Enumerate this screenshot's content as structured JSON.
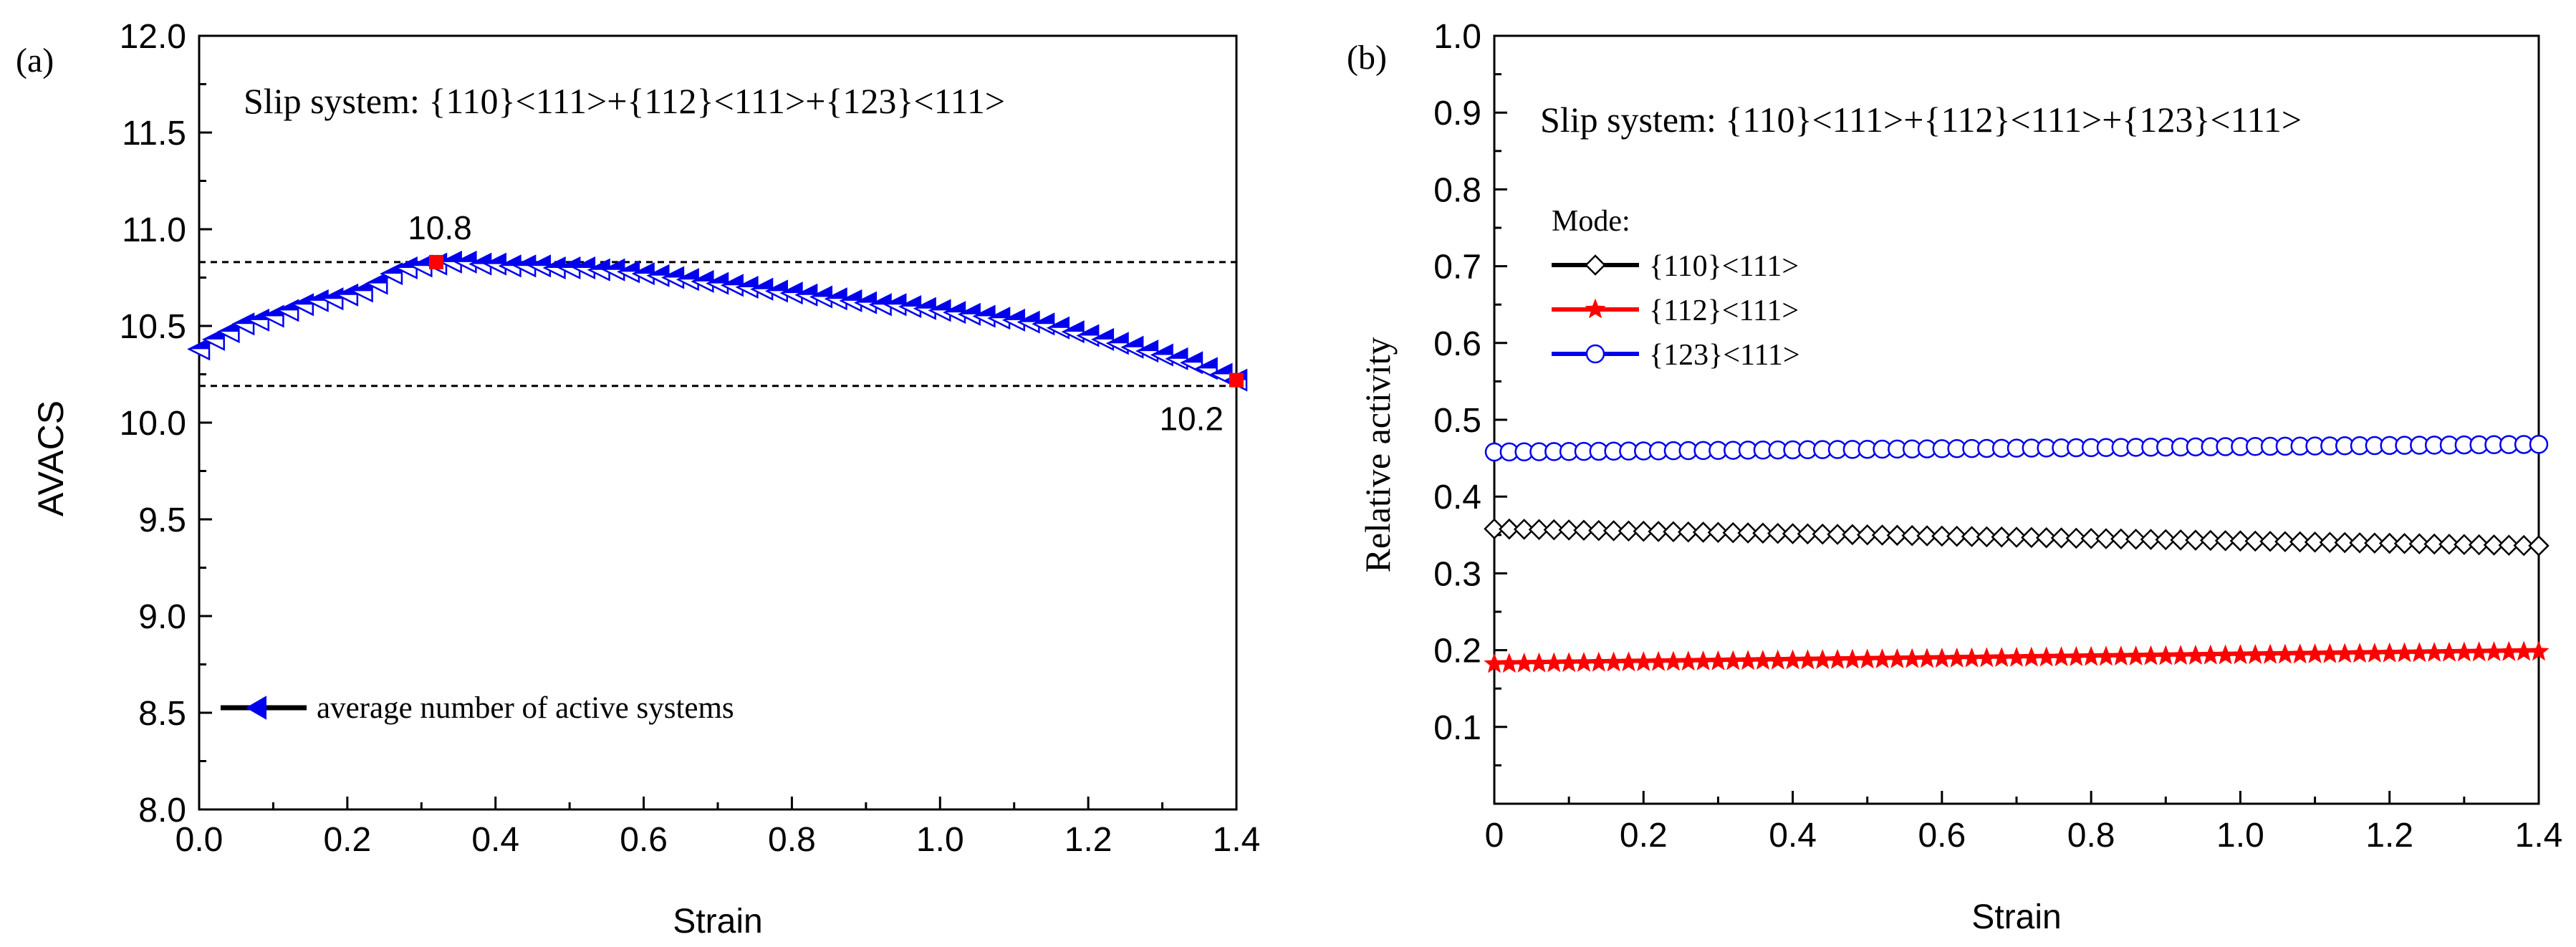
{
  "chart_data": [
    {
      "panel_label": "(a)",
      "type": "line",
      "title": "",
      "annotation": "Slip system: {110}<111>+{112}<111>+{123}<111>",
      "xlabel": "Strain",
      "ylabel": "AVACS",
      "xlim": [
        0.0,
        1.4
      ],
      "ylim": [
        8.0,
        12.0
      ],
      "xticks": [
        0.0,
        0.2,
        0.4,
        0.6,
        0.8,
        1.0,
        1.2,
        1.4
      ],
      "xtick_labels": [
        "0.0",
        "0.2",
        "0.4",
        "0.6",
        "0.8",
        "1.0",
        "1.2",
        "1.4"
      ],
      "yticks": [
        8.0,
        8.5,
        9.0,
        9.5,
        10.0,
        10.5,
        11.0,
        11.5,
        12.0
      ],
      "ytick_labels": [
        "8.0",
        "8.5",
        "9.0",
        "9.5",
        "10.0",
        "10.5",
        "11.0",
        "11.5",
        "12.0"
      ],
      "grid": false,
      "legend_position": "bottom-left",
      "series": [
        {
          "name": "average number of active systems",
          "color": "#0000ee",
          "marker": "left-triangle",
          "x": [
            0.0,
            0.02,
            0.04,
            0.06,
            0.08,
            0.1,
            0.12,
            0.14,
            0.16,
            0.18,
            0.2,
            0.22,
            0.24,
            0.26,
            0.28,
            0.3,
            0.32,
            0.34,
            0.36,
            0.38,
            0.4,
            0.42,
            0.44,
            0.46,
            0.48,
            0.5,
            0.52,
            0.54,
            0.56,
            0.58,
            0.6,
            0.62,
            0.64,
            0.66,
            0.68,
            0.7,
            0.72,
            0.74,
            0.76,
            0.78,
            0.8,
            0.82,
            0.84,
            0.86,
            0.88,
            0.9,
            0.92,
            0.94,
            0.96,
            0.98,
            1.0,
            1.02,
            1.04,
            1.06,
            1.08,
            1.1,
            1.12,
            1.14,
            1.16,
            1.18,
            1.2,
            1.22,
            1.24,
            1.26,
            1.28,
            1.3,
            1.32,
            1.34,
            1.36,
            1.38,
            1.4
          ],
          "y": [
            10.38,
            10.43,
            10.47,
            10.51,
            10.53,
            10.55,
            10.58,
            10.61,
            10.63,
            10.64,
            10.66,
            10.68,
            10.72,
            10.77,
            10.8,
            10.81,
            10.82,
            10.83,
            10.83,
            10.82,
            10.82,
            10.81,
            10.81,
            10.81,
            10.8,
            10.8,
            10.8,
            10.79,
            10.79,
            10.78,
            10.77,
            10.76,
            10.75,
            10.74,
            10.73,
            10.72,
            10.71,
            10.7,
            10.69,
            10.68,
            10.67,
            10.66,
            10.65,
            10.64,
            10.63,
            10.62,
            10.61,
            10.61,
            10.6,
            10.59,
            10.58,
            10.57,
            10.56,
            10.55,
            10.54,
            10.53,
            10.52,
            10.51,
            10.49,
            10.47,
            10.45,
            10.43,
            10.41,
            10.39,
            10.37,
            10.35,
            10.33,
            10.31,
            10.28,
            10.25,
            10.22
          ]
        }
      ],
      "reference_lines": [
        {
          "y": 10.83,
          "style": "dashed"
        },
        {
          "y": 10.19,
          "style": "dashed"
        }
      ],
      "highlight_points": [
        {
          "x": 0.32,
          "y": 10.83,
          "label": "10.8",
          "color": "#ff0000"
        },
        {
          "x": 1.4,
          "y": 10.22,
          "label": "10.2",
          "color": "#ff0000"
        }
      ]
    },
    {
      "panel_label": "(b)",
      "type": "line",
      "title": "",
      "annotation": "Slip system: {110}<111>+{112}<111>+{123}<111>",
      "xlabel": "Strain",
      "ylabel": "Relative activity",
      "xlim": [
        0.0,
        1.4
      ],
      "ylim": [
        0.0,
        1.0
      ],
      "xticks": [
        0.0,
        0.2,
        0.4,
        0.6,
        0.8,
        1.0,
        1.2,
        1.4
      ],
      "xtick_labels": [
        "0",
        "0.2",
        "0.4",
        "0.6",
        "0.8",
        "1.0",
        "1.2",
        "1.4"
      ],
      "yticks": [
        0.1,
        0.2,
        0.3,
        0.4,
        0.5,
        0.6,
        0.7,
        0.8,
        0.9,
        1.0
      ],
      "ytick_labels": [
        "0.1",
        "0.2",
        "0.3",
        "0.4",
        "0.5",
        "0.6",
        "0.7",
        "0.8",
        "0.9",
        "1.0"
      ],
      "grid": false,
      "legend_title": "Mode:",
      "legend_position": "upper-left",
      "series": [
        {
          "name": "{110}<111>",
          "color": "#000000",
          "marker": "diamond",
          "x_start": 0.0,
          "x_end": 1.4,
          "num_points": 71,
          "y_start": 0.358,
          "y_end": 0.336
        },
        {
          "name": "{112}<111>",
          "color": "#ff0000",
          "marker": "star",
          "x_start": 0.0,
          "x_end": 1.4,
          "num_points": 71,
          "y_start": 0.182,
          "y_end": 0.198
        },
        {
          "name": "{123}<111>",
          "color": "#0000ee",
          "marker": "circle",
          "x_start": 0.0,
          "x_end": 1.4,
          "num_points": 71,
          "y_start": 0.458,
          "y_end": 0.468
        }
      ]
    }
  ]
}
